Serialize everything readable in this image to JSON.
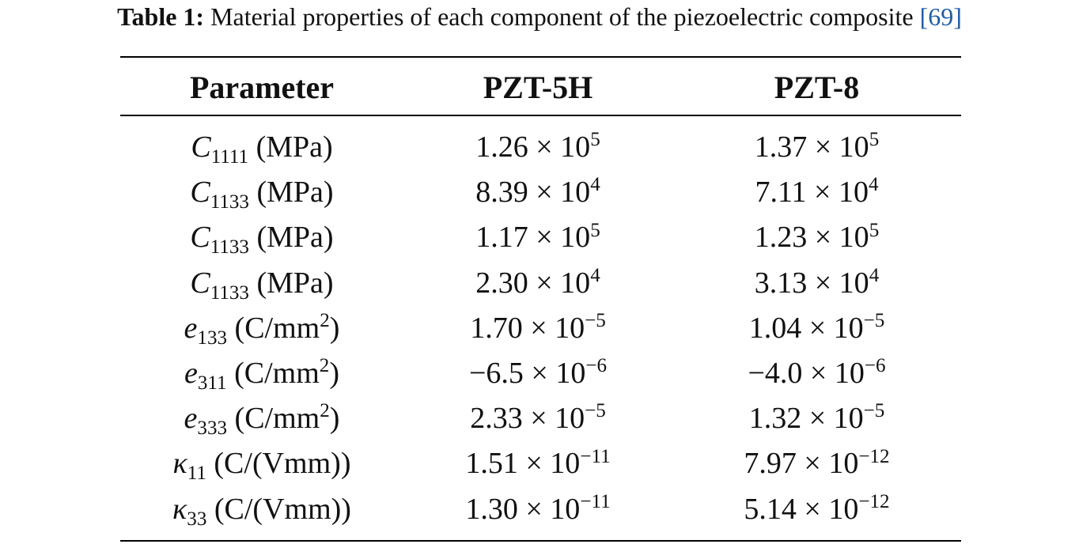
{
  "caption": {
    "label": "Table 1:",
    "text": "Material properties of each component of the piezoelectric composite",
    "ref_open": "[",
    "ref": "69",
    "ref_close": "]"
  },
  "table": {
    "headers": [
      "Parameter",
      "PZT-5H",
      "PZT-8"
    ],
    "rows": [
      {
        "sym": "C",
        "sub": "1111",
        "unit": "(MPa)",
        "unit_sup": "",
        "unit_end": "",
        "a_base": "1.26 × 10",
        "a_exp": "5",
        "b_base": "1.37 × 10",
        "b_exp": "5"
      },
      {
        "sym": "C",
        "sub": "1133",
        "unit": "(MPa)",
        "unit_sup": "",
        "unit_end": "",
        "a_base": "8.39 × 10",
        "a_exp": "4",
        "b_base": "7.11 × 10",
        "b_exp": "4"
      },
      {
        "sym": "C",
        "sub": "1133",
        "unit": "(MPa)",
        "unit_sup": "",
        "unit_end": "",
        "a_base": "1.17 × 10",
        "a_exp": "5",
        "b_base": "1.23 × 10",
        "b_exp": "5"
      },
      {
        "sym": "C",
        "sub": "1133",
        "unit": "(MPa)",
        "unit_sup": "",
        "unit_end": "",
        "a_base": "2.30 × 10",
        "a_exp": "4",
        "b_base": "3.13 × 10",
        "b_exp": "4"
      },
      {
        "sym": "e",
        "sub": "133",
        "unit": "(C/mm",
        "unit_sup": "2",
        "unit_end": ")",
        "a_base": "1.70 × 10",
        "a_exp": "−5",
        "b_base": "1.04 × 10",
        "b_exp": "−5"
      },
      {
        "sym": "e",
        "sub": "311",
        "unit": "(C/mm",
        "unit_sup": "2",
        "unit_end": ")",
        "a_base": "−6.5 × 10",
        "a_exp": "−6",
        "b_base": "−4.0 × 10",
        "b_exp": "−6"
      },
      {
        "sym": "e",
        "sub": "333",
        "unit": "(C/mm",
        "unit_sup": "2",
        "unit_end": ")",
        "a_base": "2.33 × 10",
        "a_exp": "−5",
        "b_base": "1.32 × 10",
        "b_exp": "−5"
      },
      {
        "sym": "κ",
        "sub": "11",
        "unit": "(C/(Vmm))",
        "unit_sup": "",
        "unit_end": "",
        "a_base": "1.51 × 10",
        "a_exp": "−11",
        "b_base": "7.97 × 10",
        "b_exp": "−12"
      },
      {
        "sym": "κ",
        "sub": "33",
        "unit": "(C/(Vmm))",
        "unit_sup": "",
        "unit_end": "",
        "a_base": "1.30 × 10",
        "a_exp": "−11",
        "b_base": "5.14 × 10",
        "b_exp": "−12"
      }
    ]
  }
}
